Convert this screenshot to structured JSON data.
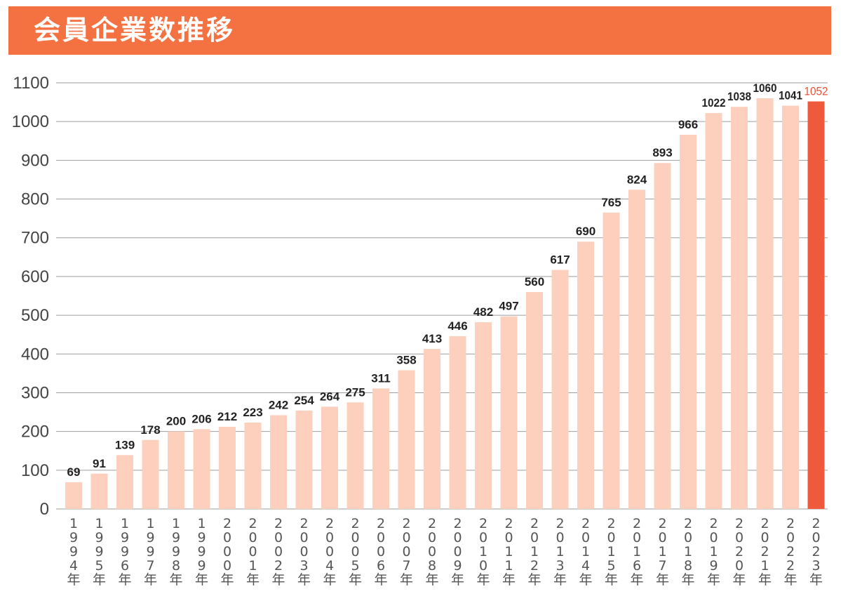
{
  "title": "会員企業数推移",
  "colors": {
    "title_bg": "#f47242",
    "bar": "#fcd0bd",
    "bar_highlight": "#ef5a3c",
    "grid": "#9e9e9e"
  },
  "chart_data": {
    "type": "bar",
    "categories": [
      "1994年",
      "1995年",
      "1996年",
      "1997年",
      "1998年",
      "1999年",
      "2000年",
      "2001年",
      "2002年",
      "2003年",
      "2004年",
      "2005年",
      "2006年",
      "2007年",
      "2008年",
      "2009年",
      "2010年",
      "2011年",
      "2012年",
      "2013年",
      "2014年",
      "2015年",
      "2016年",
      "2017年",
      "2018年",
      "2019年",
      "2020年",
      "2021年",
      "2022年",
      "2023年"
    ],
    "values": [
      69,
      91,
      139,
      178,
      200,
      206,
      212,
      223,
      242,
      254,
      264,
      275,
      311,
      358,
      413,
      446,
      482,
      497,
      560,
      617,
      690,
      765,
      824,
      893,
      966,
      1022,
      1038,
      1060,
      1041,
      1052
    ],
    "yticks": [
      0,
      100,
      200,
      300,
      400,
      500,
      600,
      700,
      800,
      900,
      1000,
      1100
    ],
    "ylim": [
      0,
      1100
    ],
    "highlight_index": 29,
    "grid": true,
    "data_labels": true
  }
}
